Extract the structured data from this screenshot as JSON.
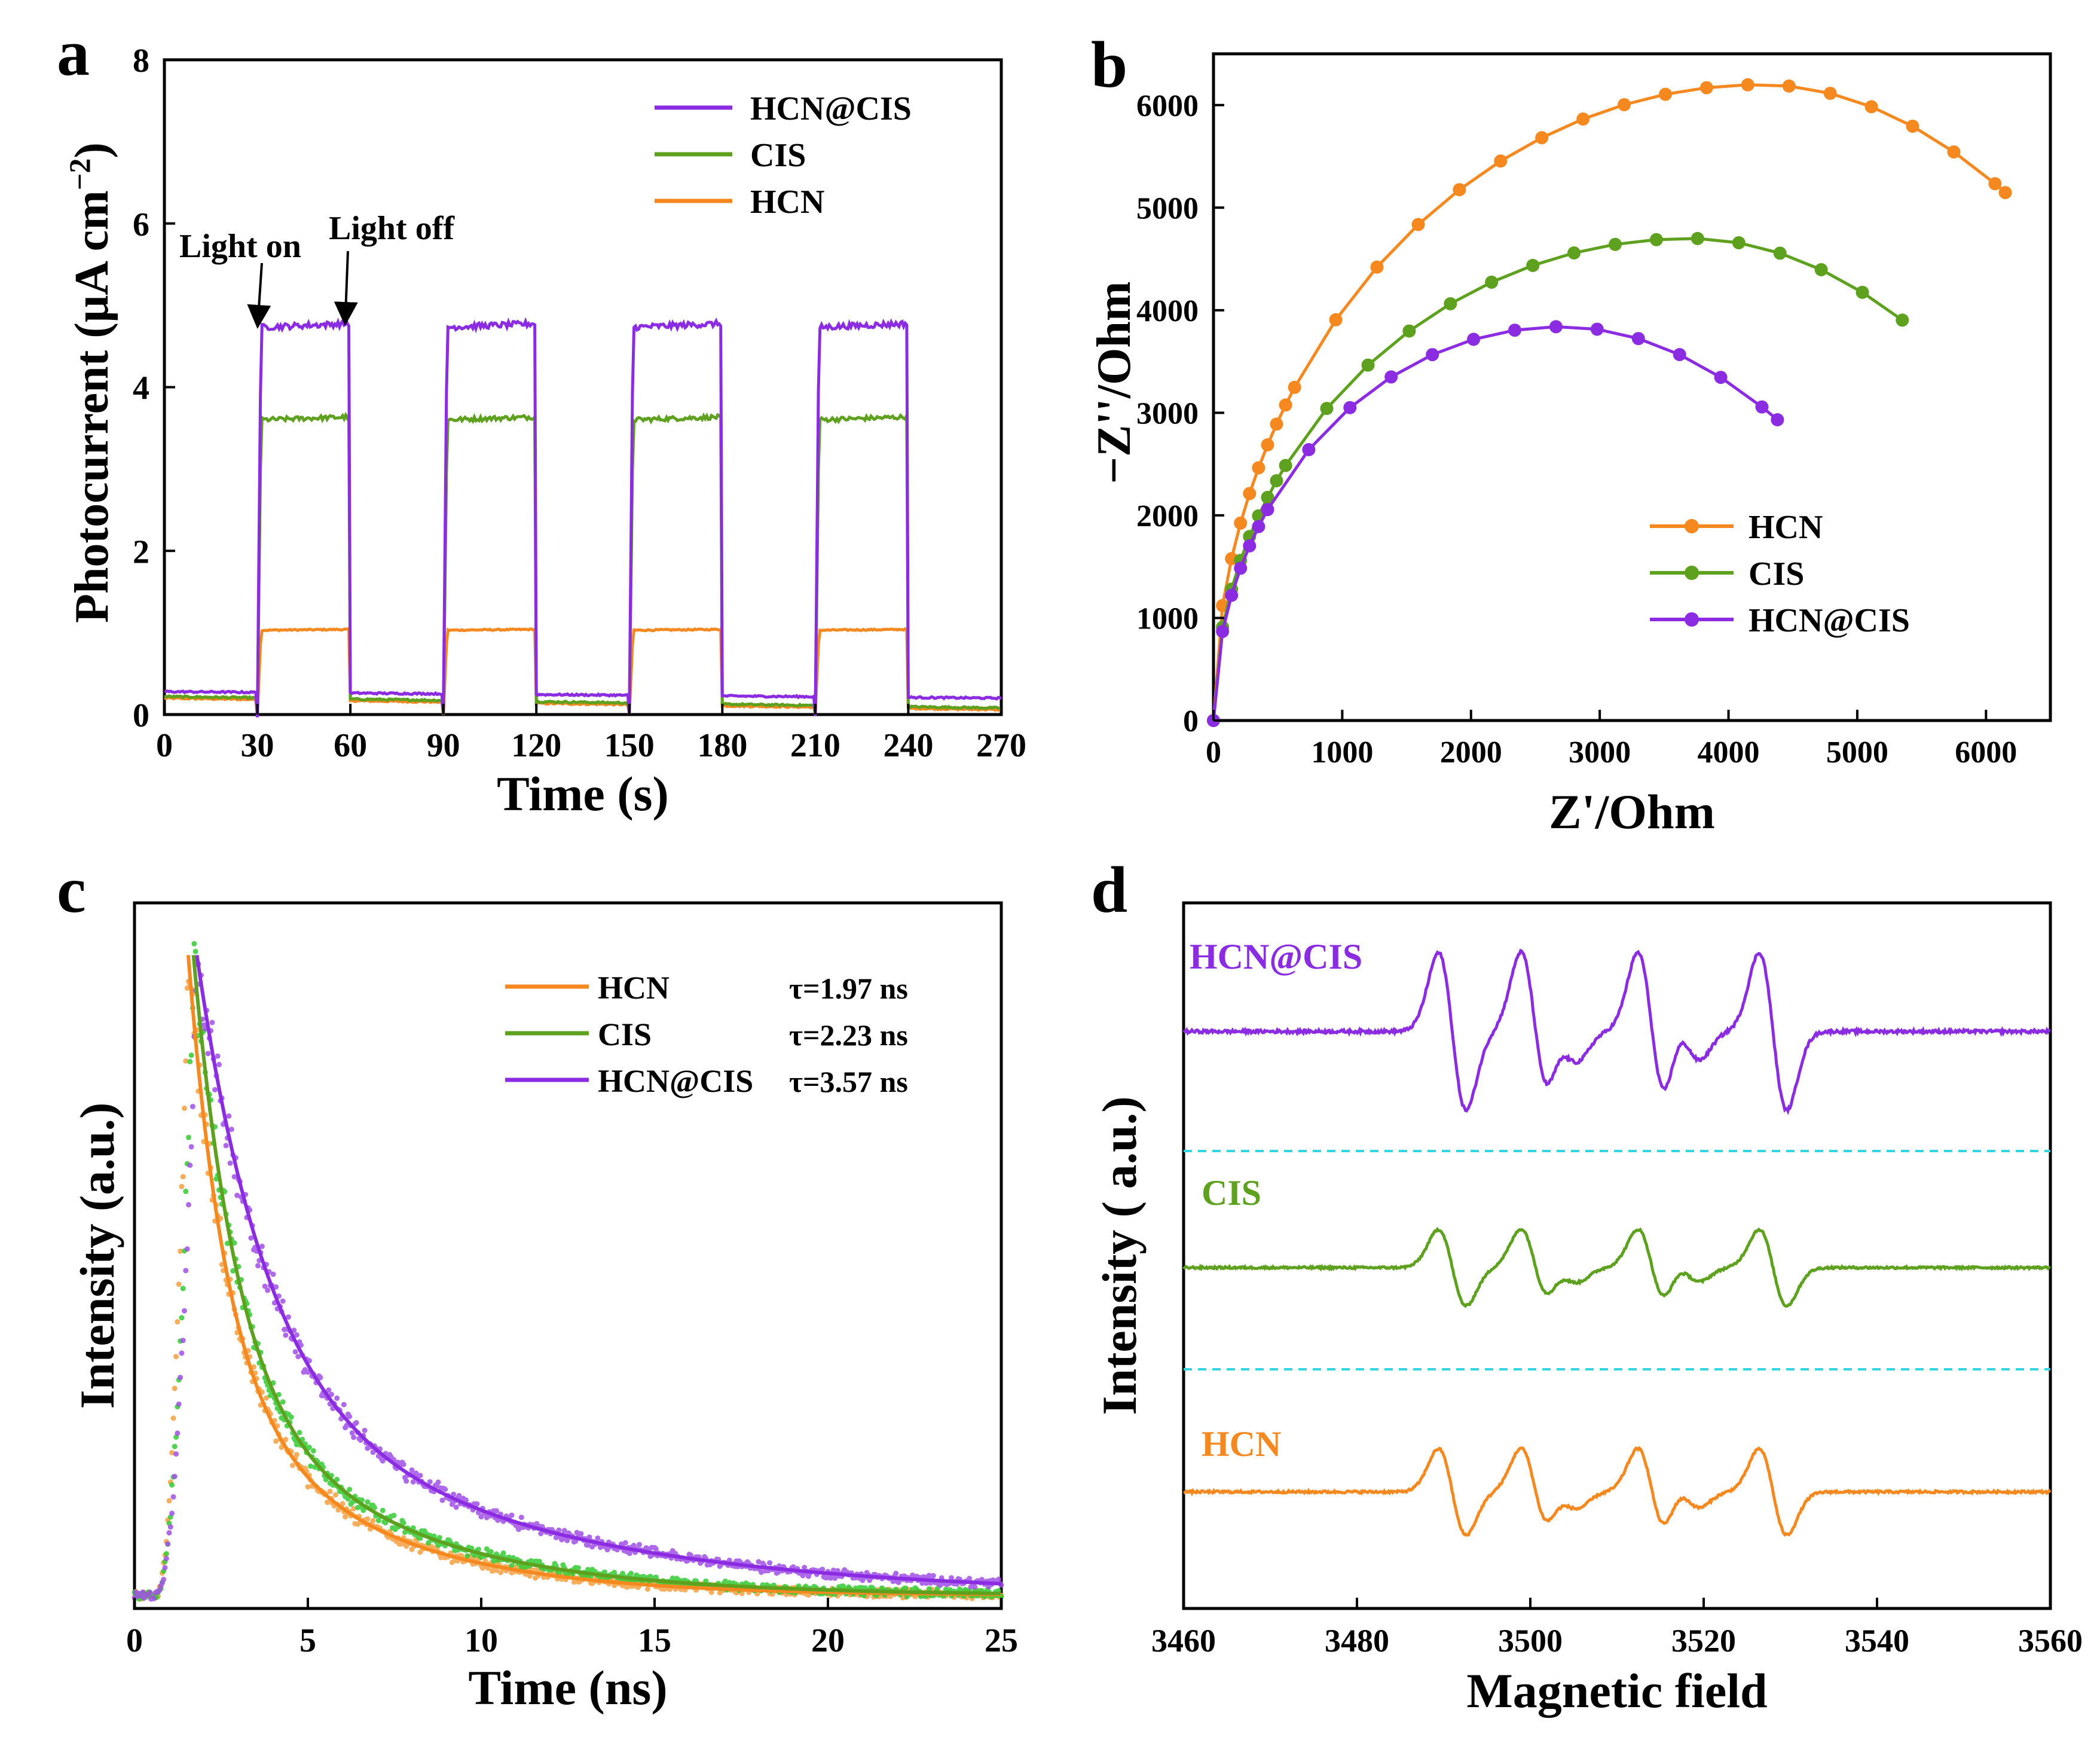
{
  "chart_data": [
    {
      "panel": "a",
      "type": "line",
      "xlabel": "Time (s)",
      "ylabel": "Photocurrent (μA cm",
      "ylabel_sup": "−2",
      "ylabel_close": ")",
      "xlim": [
        0,
        270
      ],
      "ylim": [
        0,
        8
      ],
      "xticks": [
        "0",
        "30",
        "60",
        "90",
        "120",
        "150",
        "180",
        "210",
        "240",
        "270"
      ],
      "yticks": [
        "0",
        "2",
        "4",
        "6",
        "8"
      ],
      "light_on_periods": [
        [
          30,
          60
        ],
        [
          90,
          120
        ],
        [
          150,
          180
        ],
        [
          210,
          240
        ]
      ],
      "annotations": [
        "Light on",
        "Light off"
      ],
      "series": [
        {
          "name": "HCN@CIS",
          "color": "#8B2BE2",
          "on_value": 4.73,
          "off_start": 0.28,
          "off_end": 0.2
        },
        {
          "name": "CIS",
          "color": "#5DA11F",
          "on_value": 3.6,
          "off_start": 0.22,
          "off_end": 0.08
        },
        {
          "name": "HCN",
          "color": "#F5881F",
          "on_value": 1.03,
          "off_start": 0.2,
          "off_end": 0.06
        }
      ]
    },
    {
      "panel": "b",
      "type": "scatter",
      "xlabel": "Z'/Ohm",
      "ylabel": "−Z''/Ohm",
      "xlim": [
        0,
        6500
      ],
      "ylim": [
        0,
        6500
      ],
      "xticks": [
        "0",
        "1000",
        "2000",
        "3000",
        "4000",
        "5000",
        "6000"
      ],
      "yticks": [
        "0",
        "1000",
        "2000",
        "3000",
        "4000",
        "5000",
        "6000"
      ],
      "series": [
        {
          "name": "HCN",
          "color": "#F5881F",
          "center": 4250,
          "radius": 6200,
          "x_end": 6150
        },
        {
          "name": "CIS",
          "color": "#5DA11F",
          "center": 3700,
          "radius": 4700,
          "x_end": 5350
        },
        {
          "name": "HCN@CIS",
          "color": "#8B2BE2",
          "center": 2700,
          "radius": 3840,
          "x_end": 4380
        }
      ]
    },
    {
      "panel": "c",
      "type": "line",
      "xlabel": "Time (ns)",
      "ylabel": "Intensity (a.u.)",
      "xlim": [
        0,
        25
      ],
      "ylim": [
        0,
        1.08
      ],
      "xticks": [
        "0",
        "5",
        "10",
        "15",
        "20",
        "25"
      ],
      "series": [
        {
          "name": "HCN",
          "color": "#F5881F",
          "tau_label": "τ=1.97 ns",
          "tau": 1.97
        },
        {
          "name": "CIS",
          "color": "#5DA11F",
          "tau_label": "τ=2.23 ns",
          "tau": 2.23
        },
        {
          "name": "HCN@CIS",
          "color": "#8B2BE2",
          "tau_label": "τ=3.57 ns",
          "tau": 3.57
        }
      ]
    },
    {
      "panel": "d",
      "type": "line",
      "xlabel": "Magnetic field",
      "ylabel": "Intensity ( a.u.)",
      "xlim": [
        3460,
        3560
      ],
      "xticks": [
        "3460",
        "3480",
        "3500",
        "3520",
        "3540",
        "3560"
      ],
      "peak_centers": [
        3491,
        3502,
        3504,
        3516,
        3518,
        3529
      ],
      "series": [
        {
          "name": "HCN@CIS",
          "color": "#8B2BE2",
          "amplitude": 1.0
        },
        {
          "name": "CIS",
          "color": "#5DA11F",
          "amplitude": 0.7
        },
        {
          "name": "HCN",
          "color": "#F5881F",
          "amplitude": 0.75
        }
      ]
    }
  ]
}
